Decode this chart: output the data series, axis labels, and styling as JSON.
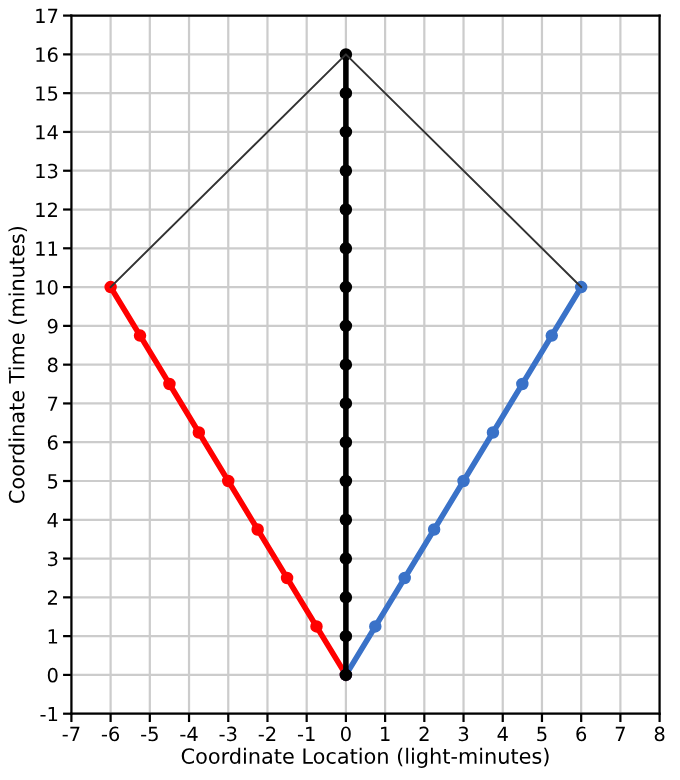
{
  "chart_data": {
    "type": "line",
    "xlabel": "Coordinate Location (light-minutes)",
    "ylabel": "Coordinate Time (minutes)",
    "series": [
      {
        "color": "#ff0000",
        "marker": "circle",
        "x": [
          0,
          -0.75,
          -1.5,
          -2.25,
          -3,
          -3.75,
          -4.5,
          -5.25,
          -6
        ],
        "values": [
          0,
          1.25,
          2.5,
          3.75,
          5,
          6.25,
          7.5,
          8.75,
          10
        ]
      },
      {
        "color": "#3a72c8",
        "marker": "circle",
        "x": [
          0,
          0.75,
          1.5,
          2.25,
          3,
          3.75,
          4.5,
          5.25,
          6
        ],
        "values": [
          0,
          1.25,
          2.5,
          3.75,
          5,
          6.25,
          7.5,
          8.75,
          10
        ]
      },
      {
        "color": "#000000",
        "marker": "circle",
        "x": [
          0,
          0,
          0,
          0,
          0,
          0,
          0,
          0,
          0,
          0,
          0,
          0,
          0,
          0,
          0,
          0,
          0
        ],
        "values": [
          0,
          1,
          2,
          3,
          4,
          5,
          6,
          7,
          8,
          9,
          10,
          11,
          12,
          13,
          14,
          15,
          16
        ]
      },
      {
        "color": "#333333",
        "marker": "none",
        "x": [
          -6,
          0,
          6
        ],
        "values": [
          10,
          16,
          10
        ]
      }
    ],
    "xlim": [
      -7,
      8
    ],
    "xticks": [
      -7,
      -6,
      -5,
      -4,
      -3,
      -2,
      -1,
      0,
      1,
      2,
      3,
      4,
      5,
      6,
      7,
      8
    ],
    "ylim": [
      -1,
      17
    ],
    "yticks": [
      -1,
      0,
      1,
      2,
      3,
      4,
      5,
      6,
      7,
      8,
      9,
      10,
      11,
      12,
      13,
      14,
      15,
      16,
      17
    ],
    "grid": true
  }
}
